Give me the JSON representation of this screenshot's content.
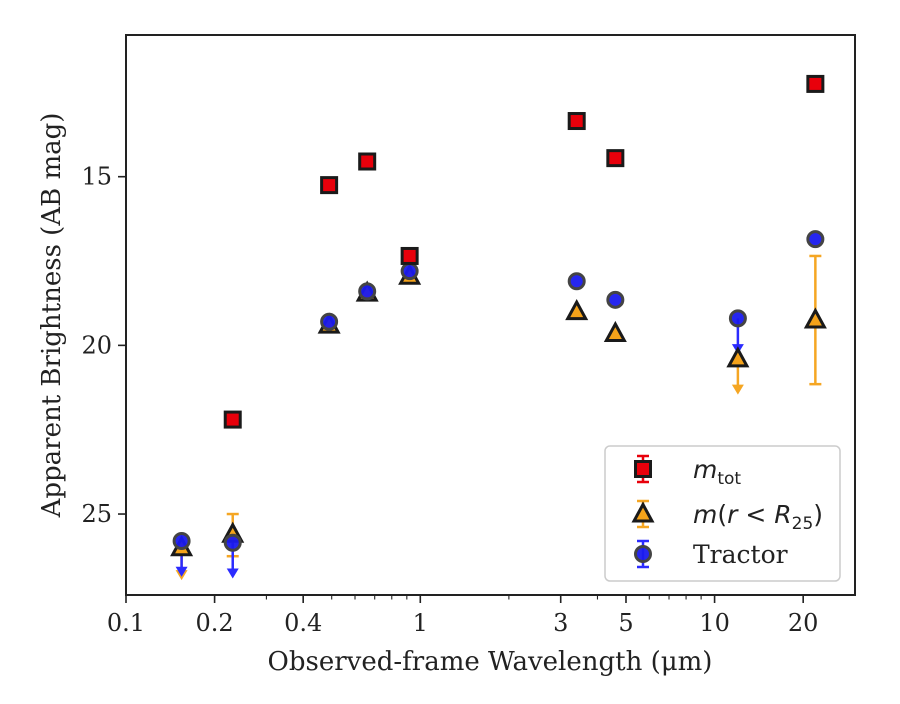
{
  "chart_data": {
    "type": "scatter",
    "xlabel": "Observed-frame Wavelength (μm)",
    "ylabel": "Apparent Brightness (AB mag)",
    "x_scale": "log",
    "xlim": [
      0.1,
      30
    ],
    "ylim": [
      27.4,
      10.8
    ],
    "y_inverted": true,
    "x_ticks": [
      {
        "value": 0.1,
        "label": "0.1"
      },
      {
        "value": 0.2,
        "label": "0.2"
      },
      {
        "value": 0.4,
        "label": "0.4"
      },
      {
        "value": 1,
        "label": "1"
      },
      {
        "value": 3,
        "label": "3"
      },
      {
        "value": 5,
        "label": "5"
      },
      {
        "value": 10,
        "label": "10"
      },
      {
        "value": 20,
        "label": "20"
      }
    ],
    "y_ticks": [
      {
        "value": 15,
        "label": "15"
      },
      {
        "value": 20,
        "label": "20"
      },
      {
        "value": 25,
        "label": "25"
      }
    ],
    "grid": false,
    "legend_position": "bottom-right",
    "series": [
      {
        "name": "m_tot",
        "marker": "square",
        "face_color": "#e8000b",
        "edge_color": "#1a1a1a",
        "error_color": "#e8000b",
        "points": [
          {
            "x": 0.2305,
            "y": 22.2
          },
          {
            "x": 0.49,
            "y": 15.25
          },
          {
            "x": 0.66,
            "y": 14.55
          },
          {
            "x": 0.92,
            "y": 17.35
          },
          {
            "x": 3.4,
            "y": 13.35
          },
          {
            "x": 4.6,
            "y": 14.45
          },
          {
            "x": 22.0,
            "y": 12.25
          }
        ]
      },
      {
        "name": "m(r < R25)",
        "marker": "triangle",
        "face_color": "#f5a31a",
        "edge_color": "#1a1a1a",
        "error_color": "#f5a623",
        "points": [
          {
            "x": 0.1545,
            "y": 26.0,
            "upper_limit": true,
            "arrow_to": 26.9
          },
          {
            "x": 0.2305,
            "y": 25.6,
            "err_low": 0.65,
            "err_high": 0.6
          },
          {
            "x": 0.49,
            "y": 19.4
          },
          {
            "x": 0.66,
            "y": 18.45
          },
          {
            "x": 0.92,
            "y": 17.95
          },
          {
            "x": 3.4,
            "y": 19.0
          },
          {
            "x": 4.6,
            "y": 19.65
          },
          {
            "x": 12.0,
            "y": 20.4,
            "upper_limit": true,
            "arrow_to": 21.4
          },
          {
            "x": 22.0,
            "y": 19.25,
            "err_low": 1.9,
            "err_high": 1.9
          }
        ]
      },
      {
        "name": "Tractor",
        "marker": "circle",
        "face_color": "#1a1aee",
        "edge_color": "#444444",
        "error_color": "#2b2bff",
        "points": [
          {
            "x": 0.1545,
            "y": 25.8,
            "upper_limit": true,
            "arrow_to": 26.8
          },
          {
            "x": 0.2305,
            "y": 25.85,
            "upper_limit": true,
            "arrow_to": 26.85
          },
          {
            "x": 0.49,
            "y": 19.3
          },
          {
            "x": 0.66,
            "y": 18.4
          },
          {
            "x": 0.92,
            "y": 17.8
          },
          {
            "x": 3.4,
            "y": 18.1
          },
          {
            "x": 4.6,
            "y": 18.65
          },
          {
            "x": 12.0,
            "y": 19.2,
            "upper_limit": true,
            "arrow_to": 20.2
          },
          {
            "x": 22.0,
            "y": 16.85
          }
        ]
      }
    ]
  }
}
